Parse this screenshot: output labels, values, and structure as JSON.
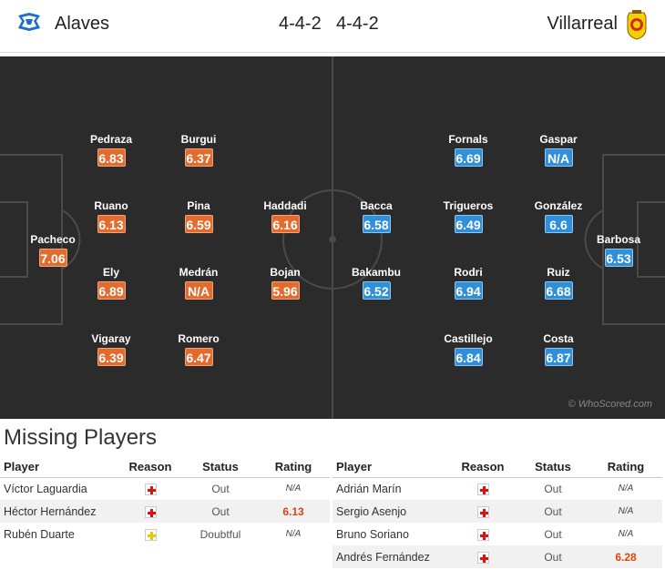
{
  "header": {
    "home_team": "Alaves",
    "home_formation": "4-4-2",
    "away_formation": "4-4-2",
    "away_team": "Villarreal"
  },
  "pitch": {
    "home_players": [
      {
        "name": "Pacheco",
        "rating": "7.06"
      },
      {
        "name": "Pedraza",
        "rating": "6.83"
      },
      {
        "name": "Ruano",
        "rating": "6.13"
      },
      {
        "name": "Ely",
        "rating": "6.89"
      },
      {
        "name": "Vigaray",
        "rating": "6.39"
      },
      {
        "name": "Burgui",
        "rating": "6.37"
      },
      {
        "name": "Pina",
        "rating": "6.59"
      },
      {
        "name": "Medrán",
        "rating": "N/A"
      },
      {
        "name": "Romero",
        "rating": "6.47"
      },
      {
        "name": "Haddadi",
        "rating": "6.16"
      },
      {
        "name": "Bojan",
        "rating": "5.96"
      }
    ],
    "away_players": [
      {
        "name": "Bacca",
        "rating": "6.58"
      },
      {
        "name": "Bakambu",
        "rating": "6.52"
      },
      {
        "name": "Fornals",
        "rating": "6.69"
      },
      {
        "name": "Trigueros",
        "rating": "6.49"
      },
      {
        "name": "Rodri",
        "rating": "6.94"
      },
      {
        "name": "Castillejo",
        "rating": "6.84"
      },
      {
        "name": "Gaspar",
        "rating": "N/A"
      },
      {
        "name": "González",
        "rating": "6.6"
      },
      {
        "name": "Ruiz",
        "rating": "6.68"
      },
      {
        "name": "Costa",
        "rating": "6.87"
      },
      {
        "name": "Barbosa",
        "rating": "6.53"
      }
    ],
    "watermark": "© WhoScored.com"
  },
  "missing": {
    "title": "Missing Players",
    "columns": {
      "player": "Player",
      "reason": "Reason",
      "status": "Status",
      "rating": "Rating"
    },
    "home": [
      {
        "player": "Víctor Laguardia",
        "reason_icon": "injury-icon",
        "status": "Out",
        "rating": "N/A"
      },
      {
        "player": "Héctor Hernández",
        "reason_icon": "injury-icon",
        "status": "Out",
        "rating": "6.13"
      },
      {
        "player": "Rubén Duarte",
        "reason_icon": "doubtful-icon",
        "status": "Doubtful",
        "rating": "N/A"
      }
    ],
    "away": [
      {
        "player": "Adrián Marín",
        "reason_icon": "injury-icon",
        "status": "Out",
        "rating": "N/A"
      },
      {
        "player": "Sergio Asenjo",
        "reason_icon": "injury-icon",
        "status": "Out",
        "rating": "N/A"
      },
      {
        "player": "Bruno Soriano",
        "reason_icon": "injury-icon",
        "status": "Out",
        "rating": "N/A"
      },
      {
        "player": "Andrés Fernández",
        "reason_icon": "injury-icon",
        "status": "Out",
        "rating": "6.28"
      }
    ]
  },
  "colors": {
    "home_rating": "#e36b2d",
    "away_rating": "#2f8fdb",
    "pitch": "#2b2b2b"
  }
}
